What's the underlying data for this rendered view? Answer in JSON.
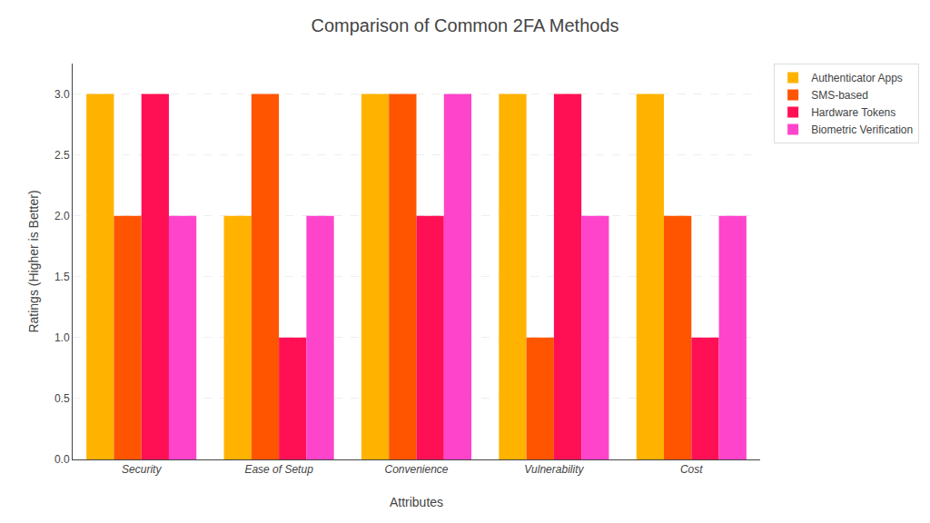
{
  "chart_data": {
    "type": "bar",
    "title": "Comparison of Common 2FA Methods",
    "xlabel": "Attributes",
    "ylabel": "Ratings (Higher is Better)",
    "categories": [
      "Security",
      "Ease of Setup",
      "Convenience",
      "Vulnerability",
      "Cost"
    ],
    "series": [
      {
        "name": "Authenticator Apps",
        "color": "#FFB300",
        "values": [
          3,
          2,
          3,
          3,
          3
        ]
      },
      {
        "name": "SMS-based",
        "color": "#FF5500",
        "values": [
          2,
          3,
          3,
          1,
          2
        ]
      },
      {
        "name": "Hardware Tokens",
        "color": "#FF1055",
        "values": [
          3,
          1,
          2,
          3,
          1
        ]
      },
      {
        "name": "Biometric Verification",
        "color": "#FF44CC",
        "values": [
          2,
          2,
          3,
          2,
          2
        ]
      }
    ],
    "ylim": [
      0,
      3.25
    ],
    "yticks": [
      {
        "value": 0,
        "label": "0.0"
      },
      0.5,
      {
        "value": 1,
        "label": "1.0"
      },
      1.5,
      {
        "value": 2,
        "label": "2.0"
      },
      2.5,
      {
        "value": 3,
        "label": "3.0"
      }
    ],
    "grid": true,
    "legend": "upper right"
  }
}
